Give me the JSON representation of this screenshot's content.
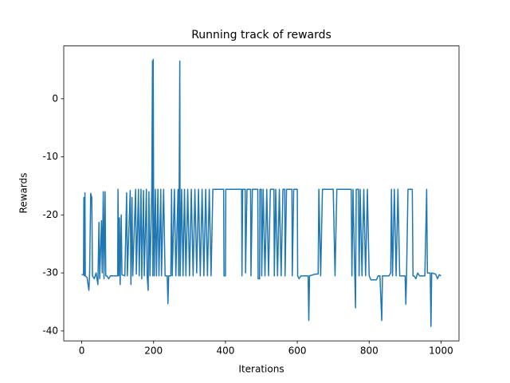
{
  "chart_data": {
    "type": "line",
    "title": "Running track of rewards",
    "x_label": "Iterations",
    "y_label": "Rewards",
    "color": "#1f77b4",
    "xlim": [
      -50,
      1050
    ],
    "ylim": [
      -41.7,
      9.1
    ],
    "xticks": [
      0,
      200,
      400,
      600,
      800,
      1000
    ],
    "yticks": [
      -40,
      -30,
      -20,
      -10,
      0
    ],
    "x": [
      0,
      5,
      6,
      7,
      9,
      10,
      15,
      20,
      22,
      25,
      28,
      30,
      35,
      40,
      45,
      48,
      50,
      55,
      57,
      60,
      62,
      65,
      67,
      70,
      75,
      80,
      85,
      100,
      101,
      103,
      105,
      107,
      110,
      112,
      120,
      125,
      127,
      135,
      137,
      140,
      142,
      150,
      152,
      158,
      160,
      165,
      167,
      172,
      174,
      180,
      182,
      185,
      187,
      190,
      195,
      197,
      198,
      199,
      200,
      202,
      205,
      208,
      212,
      215,
      220,
      222,
      228,
      232,
      238,
      240,
      242,
      248,
      250,
      252,
      258,
      262,
      268,
      270,
      273,
      274,
      278,
      282,
      286,
      290,
      295,
      300,
      305,
      310,
      315,
      320,
      325,
      330,
      335,
      340,
      345,
      350,
      355,
      360,
      365,
      395,
      396,
      400,
      401,
      445,
      446,
      448,
      455,
      456,
      460,
      470,
      471,
      475,
      490,
      491,
      495,
      496,
      500,
      501,
      505,
      510,
      515,
      520,
      525,
      535,
      536,
      540,
      545,
      550,
      555,
      560,
      565,
      566,
      570,
      585,
      586,
      590,
      600,
      601,
      605,
      610,
      625,
      630,
      632,
      634,
      650,
      658,
      660,
      665,
      670,
      700,
      705,
      710,
      750,
      752,
      755,
      760,
      762,
      764,
      770,
      772,
      775,
      780,
      785,
      790,
      795,
      800,
      805,
      820,
      825,
      830,
      835,
      837,
      845,
      855,
      860,
      862,
      865,
      870,
      875,
      880,
      885,
      890,
      900,
      902,
      904,
      908,
      920,
      922,
      925,
      930,
      935,
      940,
      955,
      960,
      962,
      970,
      972,
      974,
      985,
      990,
      995,
      1000
    ],
    "values": [
      -30.3,
      -30.3,
      -17,
      -30.5,
      -16.2,
      -30.5,
      -30.8,
      -33,
      -30,
      -16.3,
      -17,
      -30.5,
      -31,
      -30,
      -32,
      -21.3,
      -31,
      -21,
      -30,
      -16,
      -31,
      -16,
      -30.5,
      -30.5,
      -31,
      -30.5,
      -30.5,
      -30.5,
      -15.6,
      -30.5,
      -20.5,
      -32,
      -20,
      -30.3,
      -30.5,
      -16.2,
      -30.5,
      -15.8,
      -32,
      -17,
      -30.5,
      -15.6,
      -30.2,
      -15.6,
      -30.5,
      -15.6,
      -31,
      -15.8,
      -30.5,
      -15.6,
      -30.5,
      -33,
      -16,
      -30.5,
      -15.6,
      6.5,
      -30.5,
      6.8,
      -15.6,
      -30.5,
      -15.6,
      -30.5,
      -15.6,
      -30.5,
      -15.6,
      -30.5,
      -15.6,
      -30.5,
      -30.5,
      -35.3,
      -30.5,
      -30.5,
      -15.6,
      -30.5,
      -15.6,
      -30.5,
      -15.6,
      -30.5,
      6.5,
      -30.5,
      -15.6,
      -30.5,
      -15.6,
      -30.5,
      -15.6,
      -30.5,
      -15.6,
      -30.5,
      -15.6,
      -30,
      -15.6,
      -30.5,
      -15.6,
      -30.5,
      -15.6,
      -30.5,
      -15.6,
      -30.5,
      -15.6,
      -15.6,
      -30.5,
      -30.5,
      -15.6,
      -15.6,
      -30.5,
      -15.6,
      -15.6,
      -30,
      -15.6,
      -15.6,
      -30.5,
      -15.6,
      -15.6,
      -31,
      -31,
      -15.6,
      -15.6,
      -30.5,
      -15.6,
      -30.5,
      -15.6,
      -30.5,
      -15.6,
      -15.6,
      -30.5,
      -15.6,
      -30.5,
      -15.6,
      -30.5,
      -15.6,
      -15.6,
      -30.5,
      -15.6,
      -15.6,
      -30.5,
      -15.6,
      -15.6,
      -30.5,
      -31,
      -30.5,
      -30.5,
      -30.5,
      -38.2,
      -30.5,
      -30.2,
      -30.2,
      -15.6,
      -30.5,
      -15.6,
      -15.6,
      -30.5,
      -15.6,
      -15.6,
      -30.5,
      -15.6,
      -30.5,
      -36,
      -15.6,
      -15.6,
      -30.5,
      -15.6,
      -30.5,
      -15.6,
      -30.5,
      -15.6,
      -30.5,
      -31.2,
      -31.2,
      -30.5,
      -30.5,
      -38.2,
      -30.5,
      -30.5,
      -30.5,
      -30,
      -15.6,
      -30.5,
      -15.6,
      -30.5,
      -15.6,
      -30.5,
      -30.5,
      -30.5,
      -35.4,
      -30.5,
      -15.6,
      -15.6,
      -30.5,
      -30.5,
      -31,
      -30,
      -30.5,
      -30.5,
      -15.6,
      -30,
      -30,
      -39.2,
      -30,
      -30.2,
      -31,
      -30.3,
      -30.5
    ]
  }
}
